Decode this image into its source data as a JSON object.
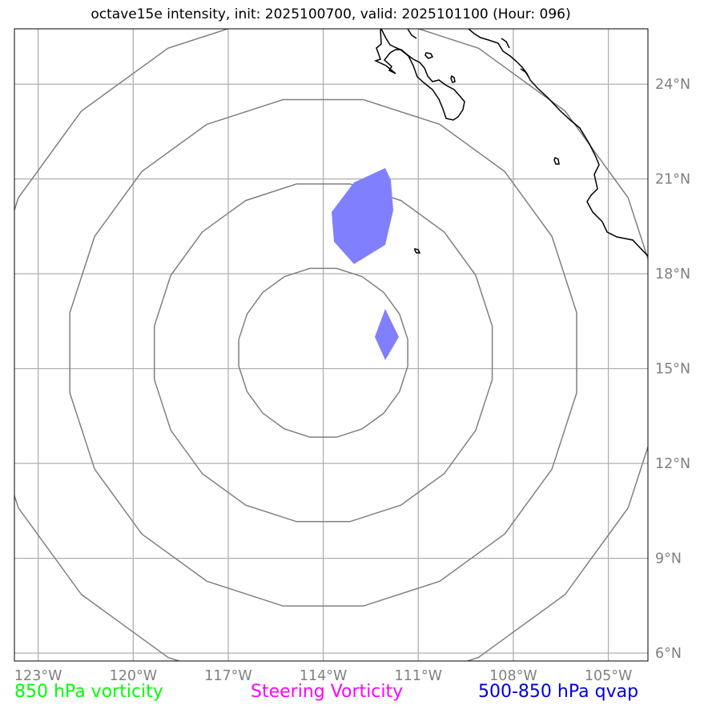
{
  "title": "octave15e intensity, init: 2025100700, valid: 2025101100 (Hour: 096)",
  "map": {
    "lon_range": [
      -123.75,
      -103.75
    ],
    "lat_range": [
      5.75,
      25.75
    ],
    "lon_ticks": [
      {
        "value": -123,
        "label": "123°W"
      },
      {
        "value": -120,
        "label": "120°W"
      },
      {
        "value": -117,
        "label": "117°W"
      },
      {
        "value": -114,
        "label": "114°W"
      },
      {
        "value": -111,
        "label": "111°W"
      },
      {
        "value": -108,
        "label": "108°W"
      },
      {
        "value": -105,
        "label": "105°W"
      }
    ],
    "lat_ticks": [
      {
        "value": 24,
        "label": "24°N"
      },
      {
        "value": 21,
        "label": "21°N"
      },
      {
        "value": 18,
        "label": "18°N"
      },
      {
        "value": 15,
        "label": "15°N"
      },
      {
        "value": 12,
        "label": "12°N"
      },
      {
        "value": 9,
        "label": "9°N"
      },
      {
        "value": 6,
        "label": "6°N"
      }
    ],
    "gridlines": true,
    "colors": {
      "grid": "#b0b0b0",
      "range_rings": "#808080",
      "coastline": "#000000",
      "qvap_fill": "#8080ff",
      "tick_label": "#808080"
    },
    "range_rings_center": {
      "lon": -114.0,
      "lat": 15.5
    },
    "range_rings_radius_deg": [
      2.7,
      5.4,
      8.1,
      10.8
    ]
  },
  "legend": [
    {
      "label": "850 hPa vorticity",
      "color": "#00ff00"
    },
    {
      "label": "Steering Vorticity",
      "color": "#ff00ff"
    },
    {
      "label": "500-850 hPa qvap",
      "color": "#0000dd"
    }
  ]
}
